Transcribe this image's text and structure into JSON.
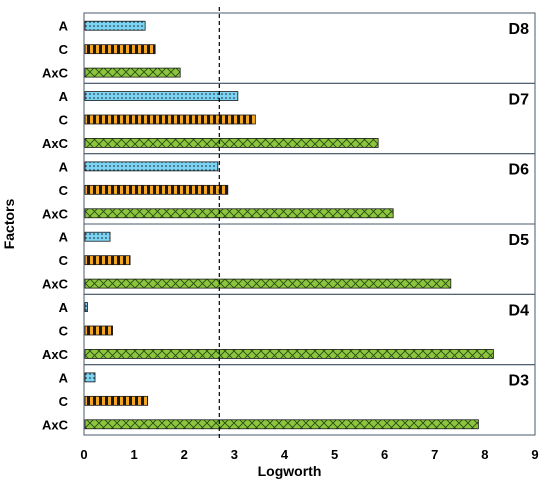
{
  "chart_data": {
    "type": "bar",
    "orientation": "horizontal",
    "xlabel": "Logworth",
    "ylabel": "Factors",
    "xlim": [
      0,
      9
    ],
    "x_ticks": [
      "0",
      "1",
      "2",
      "3",
      "4",
      "5",
      "6",
      "7",
      "8",
      "9"
    ],
    "reference_line": 2.7,
    "factors": [
      "A",
      "C",
      "AxC"
    ],
    "factor_colors": {
      "A": "#7cd4f4",
      "C": "#f5a623",
      "AxC": "#8cc63f"
    },
    "factor_patterns": {
      "A": "dots",
      "C": "vertical-stripes",
      "AxC": "crosshatch"
    },
    "panels": [
      {
        "name": "D8",
        "values": [
          1.2,
          1.4,
          1.9
        ]
      },
      {
        "name": "D7",
        "values": [
          3.05,
          3.4,
          5.85
        ]
      },
      {
        "name": "D6",
        "values": [
          2.65,
          2.85,
          6.15
        ]
      },
      {
        "name": "D5",
        "values": [
          0.5,
          0.9,
          7.3
        ]
      },
      {
        "name": "D4",
        "values": [
          0.05,
          0.55,
          8.15
        ]
      },
      {
        "name": "D3",
        "values": [
          0.2,
          1.25,
          7.85
        ]
      }
    ]
  }
}
